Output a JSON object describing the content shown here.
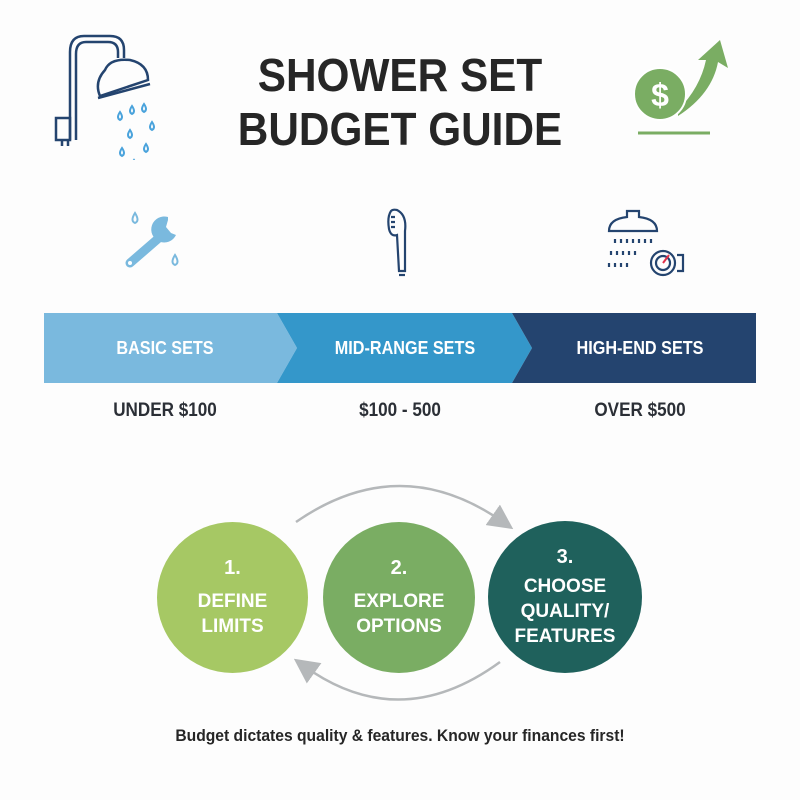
{
  "title": {
    "line1": "SHOWER SET",
    "line2": "BUDGET GUIDE"
  },
  "header_icons": [
    "shower-head-icon",
    "dollar-growth-icon"
  ],
  "tiers": [
    {
      "label": "BASIC SETS",
      "price": "UNDER $100",
      "icon": "wrench-icon",
      "color": "#7ab9de"
    },
    {
      "label": "MID-RANGE SETS",
      "price": "$100 - 500",
      "icon": "handheld-shower-icon",
      "color": "#3497ca"
    },
    {
      "label": "HIGH-END SETS",
      "price": "OVER $500",
      "icon": "rain-shower-gauge-icon",
      "color": "#24446f"
    }
  ],
  "steps": [
    {
      "number": "1.",
      "lines": [
        "DEFINE",
        "LIMITS"
      ],
      "color": "#a6c864"
    },
    {
      "number": "2.",
      "lines": [
        "EXPLORE",
        "OPTIONS"
      ],
      "color": "#7aad63"
    },
    {
      "number": "3.",
      "lines": [
        "CHOOSE",
        "QUALITY/",
        "FEATURES"
      ],
      "color": "#1f615c"
    }
  ],
  "footer": "Budget dictates quality & features. Know your finances first!"
}
